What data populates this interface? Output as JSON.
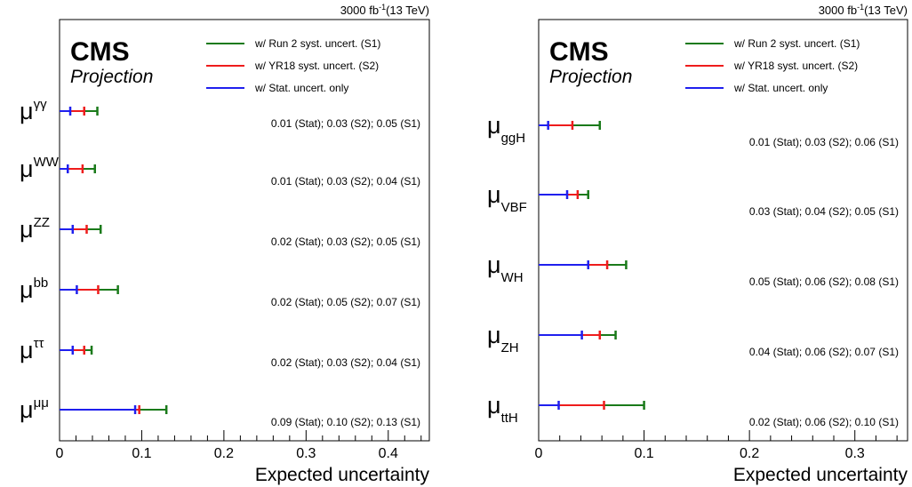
{
  "chart_data": [
    {
      "type": "bar",
      "header_lumi": "3000 fb",
      "header_exp": "-1",
      "header_energy": "(13 TeV)",
      "cms_label": "CMS",
      "projection_label": "Projection",
      "xlabel": "Expected uncertainty",
      "xlim": [
        0,
        0.45
      ],
      "xticks": [
        {
          "value": 0,
          "label": "0"
        },
        {
          "value": 0.1,
          "label": "0.1"
        },
        {
          "value": 0.2,
          "label": "0.2"
        },
        {
          "value": 0.3,
          "label": "0.3"
        },
        {
          "value": 0.4,
          "label": "0.4"
        }
      ],
      "legend": [
        {
          "label": "w/ Run 2 syst. uncert. (S1)",
          "color": "#1a7a1a"
        },
        {
          "label": "w/ YR18 syst. uncert. (S2)",
          "color": "#ee1c1c"
        },
        {
          "label": "w/ Stat. uncert. only",
          "color": "#1f1fee"
        }
      ],
      "series_order": [
        "S1",
        "S2",
        "Stat"
      ],
      "rows": [
        {
          "base": "μ",
          "sup": "γγ",
          "sub": "",
          "Stat": 0.013,
          "S2": 0.03,
          "S1": 0.046,
          "annotation": "0.01 (Stat); 0.03 (S2); 0.05 (S1)"
        },
        {
          "base": "μ",
          "sup": "WW",
          "sub": "",
          "Stat": 0.01,
          "S2": 0.028,
          "S1": 0.043,
          "annotation": "0.01 (Stat); 0.03 (S2); 0.04 (S1)"
        },
        {
          "base": "μ",
          "sup": "ZZ",
          "sub": "",
          "Stat": 0.016,
          "S2": 0.033,
          "S1": 0.05,
          "annotation": "0.02 (Stat); 0.03 (S2); 0.05 (S1)"
        },
        {
          "base": "μ",
          "sup": "bb",
          "sub": "",
          "Stat": 0.021,
          "S2": 0.047,
          "S1": 0.071,
          "annotation": "0.02 (Stat); 0.05 (S2); 0.07 (S1)"
        },
        {
          "base": "μ",
          "sup": "ττ",
          "sub": "",
          "Stat": 0.016,
          "S2": 0.03,
          "S1": 0.039,
          "annotation": "0.02 (Stat); 0.03 (S2); 0.04 (S1)"
        },
        {
          "base": "μ",
          "sup": "μμ",
          "sub": "",
          "Stat": 0.092,
          "S2": 0.097,
          "S1": 0.13,
          "annotation": "0.09 (Stat); 0.10 (S2); 0.13 (S1)"
        }
      ]
    },
    {
      "type": "bar",
      "header_lumi": "3000 fb",
      "header_exp": "-1",
      "header_energy": "(13 TeV)",
      "cms_label": "CMS",
      "projection_label": "Projection",
      "xlabel": "Expected uncertainty",
      "xlim": [
        0,
        0.35
      ],
      "xticks": [
        {
          "value": 0,
          "label": "0"
        },
        {
          "value": 0.1,
          "label": "0.1"
        },
        {
          "value": 0.2,
          "label": "0.2"
        },
        {
          "value": 0.3,
          "label": "0.3"
        }
      ],
      "legend": [
        {
          "label": "w/ Run 2 syst. uncert. (S1)",
          "color": "#1a7a1a"
        },
        {
          "label": "w/ YR18 syst. uncert. (S2)",
          "color": "#ee1c1c"
        },
        {
          "label": "w/ Stat. uncert. only",
          "color": "#1f1fee"
        }
      ],
      "series_order": [
        "S1",
        "S2",
        "Stat"
      ],
      "rows": [
        {
          "base": "μ",
          "sup": "",
          "sub": "ggH",
          "Stat": 0.009,
          "S2": 0.032,
          "S1": 0.058,
          "annotation": "0.01 (Stat); 0.03 (S2); 0.06 (S1)"
        },
        {
          "base": "μ",
          "sup": "",
          "sub": "VBF",
          "Stat": 0.027,
          "S2": 0.037,
          "S1": 0.047,
          "annotation": "0.03 (Stat); 0.04 (S2); 0.05 (S1)"
        },
        {
          "base": "μ",
          "sup": "",
          "sub": "WH",
          "Stat": 0.047,
          "S2": 0.065,
          "S1": 0.083,
          "annotation": "0.05 (Stat); 0.06 (S2); 0.08 (S1)"
        },
        {
          "base": "μ",
          "sup": "",
          "sub": "ZH",
          "Stat": 0.041,
          "S2": 0.058,
          "S1": 0.073,
          "annotation": "0.04 (Stat); 0.06 (S2); 0.07 (S1)"
        },
        {
          "base": "μ",
          "sup": "",
          "sub": "ttH",
          "Stat": 0.019,
          "S2": 0.062,
          "S1": 0.1,
          "annotation": "0.02 (Stat); 0.06 (S2); 0.10 (S1)"
        }
      ]
    }
  ]
}
